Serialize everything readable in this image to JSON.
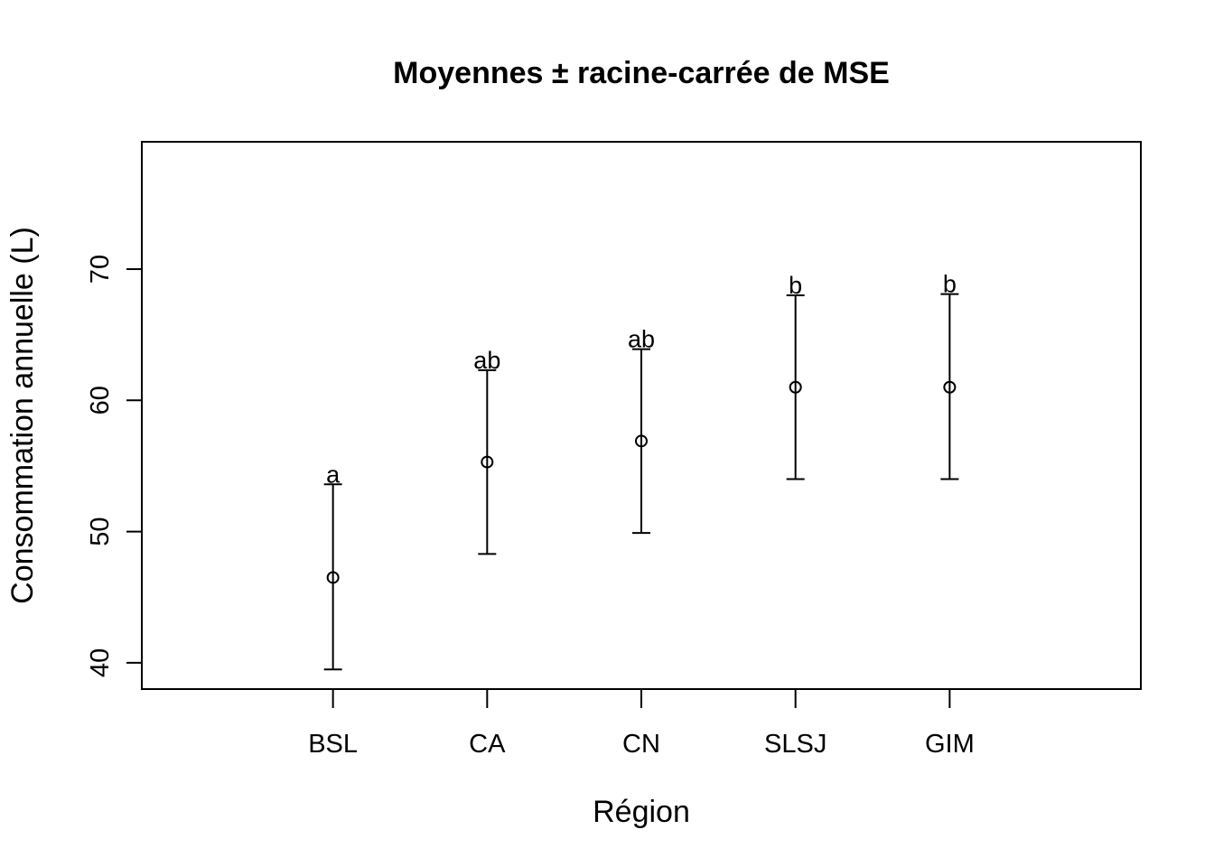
{
  "chart_data": {
    "type": "scatter",
    "title": "Moyennes ± racine-carrée de MSE",
    "xlabel": "Région",
    "ylabel": "Consommation annuelle (L)",
    "categories": [
      "BSL",
      "CA",
      "CN",
      "SLSJ",
      "GIM"
    ],
    "means": [
      46.5,
      55.3,
      56.9,
      61.0,
      61.0
    ],
    "lower": [
      39.5,
      48.3,
      49.9,
      54.0,
      54.0
    ],
    "upper": [
      53.6,
      62.3,
      63.9,
      68.0,
      68.1
    ],
    "group_letters": [
      "a",
      "ab",
      "ab",
      "b",
      "b"
    ],
    "ylim": [
      38,
      79.7
    ],
    "xlim": [
      -0.24,
      6.24
    ],
    "yticks": [
      40,
      50,
      60,
      70
    ],
    "ytick_labels": [
      "40",
      "50",
      "60",
      "70"
    ],
    "grid": false,
    "legend": "none"
  }
}
